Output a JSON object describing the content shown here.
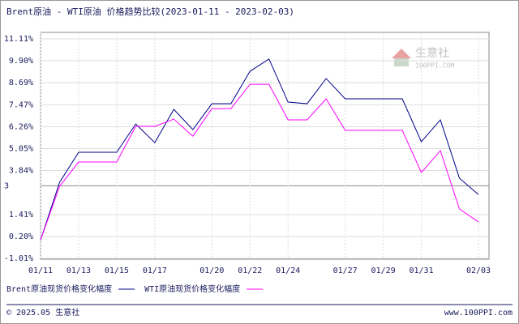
{
  "chart_data": {
    "type": "line",
    "title": "Brent原油 - WTI原油 价格趋势比较(2023-01-11 - 2023-02-03)",
    "categories": [
      "01/11",
      null,
      "01/13",
      null,
      "01/15",
      null,
      "01/17",
      null,
      null,
      "01/20",
      null,
      "01/22",
      null,
      "01/24",
      null,
      null,
      "01/27",
      null,
      "01/29",
      null,
      "01/31",
      null,
      null,
      "02/03"
    ],
    "series": [
      {
        "name": "Brent原油现货价格变化幅度",
        "color": "#00008b",
        "values": [
          0,
          3.19,
          4.85,
          4.85,
          4.85,
          6.41,
          5.38,
          7.22,
          6.1,
          7.53,
          7.53,
          9.32,
          10.0,
          7.62,
          7.53,
          8.92,
          7.8,
          7.8,
          7.8,
          7.8,
          5.43,
          6.64,
          3.42,
          2.52
        ]
      },
      {
        "name": "WTI原油现货价格变化幅度",
        "color": "#ff00ff",
        "values": [
          0,
          2.97,
          4.31,
          4.31,
          4.31,
          6.28,
          6.28,
          6.68,
          5.74,
          7.26,
          7.26,
          8.6,
          8.6,
          6.64,
          6.64,
          7.8,
          6.06,
          6.06,
          6.06,
          6.06,
          3.73,
          4.94,
          1.72,
          1.0
        ]
      }
    ],
    "ylim": [
      -1.01,
      11.11
    ],
    "yticks": [
      {
        "value": 11.11,
        "label": "11.11%"
      },
      {
        "value": 9.9,
        "label": "9.90%"
      },
      {
        "value": 8.69,
        "label": "8.69%"
      },
      {
        "value": 7.47,
        "label": "7.47%"
      },
      {
        "value": 6.26,
        "label": "6.26%"
      },
      {
        "value": 5.05,
        "label": "5.05%"
      },
      {
        "value": 3.84,
        "label": "3.84%"
      },
      {
        "value": 1.41,
        "label": "1.41%"
      },
      {
        "value": 0.2,
        "label": "0.20%"
      },
      {
        "value": -1.01,
        "label": "-1.01%"
      }
    ],
    "reference_line": 3,
    "grid": true,
    "legend": "bottom",
    "watermark": {
      "name": "生意社",
      "site": "100PPI.COM"
    },
    "footer": {
      "left": "© 2025.05 生意社",
      "right": "www.100PPI.com"
    }
  }
}
